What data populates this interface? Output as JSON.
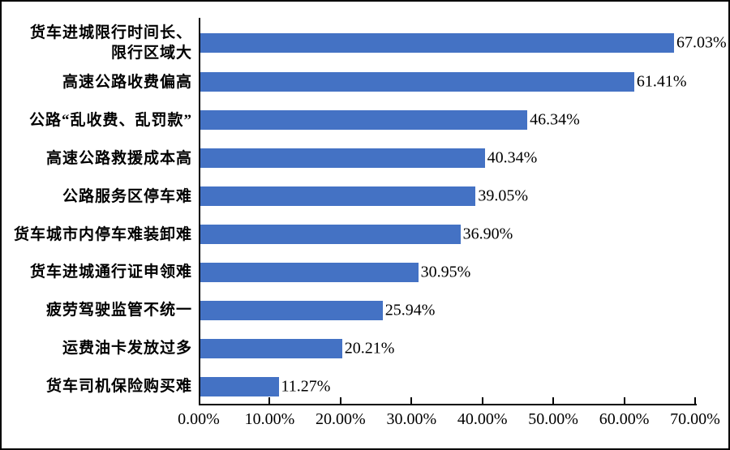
{
  "chart_data": {
    "type": "bar",
    "orientation": "horizontal",
    "title": "",
    "xlabel": "",
    "ylabel": "",
    "grid": false,
    "legend": false,
    "categories": [
      "货车进城限行时间长、\n限行区域大",
      "高速公路收费偏高",
      "公路“乱收费、乱罚款”",
      "高速公路救援成本高",
      "公路服务区停车难",
      "货车城市内停车难装卸难",
      "货车进城通行证申领难",
      "疲劳驾驶监管不统一",
      "运费油卡发放过多",
      "货车司机保险购买难"
    ],
    "values": [
      67.03,
      61.41,
      46.34,
      40.34,
      39.05,
      36.9,
      30.95,
      25.94,
      20.21,
      11.27
    ],
    "value_labels": [
      "67.03%",
      "61.41%",
      "46.34%",
      "40.34%",
      "39.05%",
      "36.90%",
      "30.95%",
      "25.94%",
      "20.21%",
      "11.27%"
    ],
    "x_tick_labels": [
      "0.00%",
      "10.00%",
      "20.00%",
      "30.00%",
      "40.00%",
      "50.00%",
      "60.00%",
      "70.00%"
    ],
    "xlim": [
      0,
      70
    ],
    "bar_color": "#4472C4",
    "axis_color": "#000000",
    "text_color": "#000000",
    "background_color": "#FFFFFF"
  }
}
